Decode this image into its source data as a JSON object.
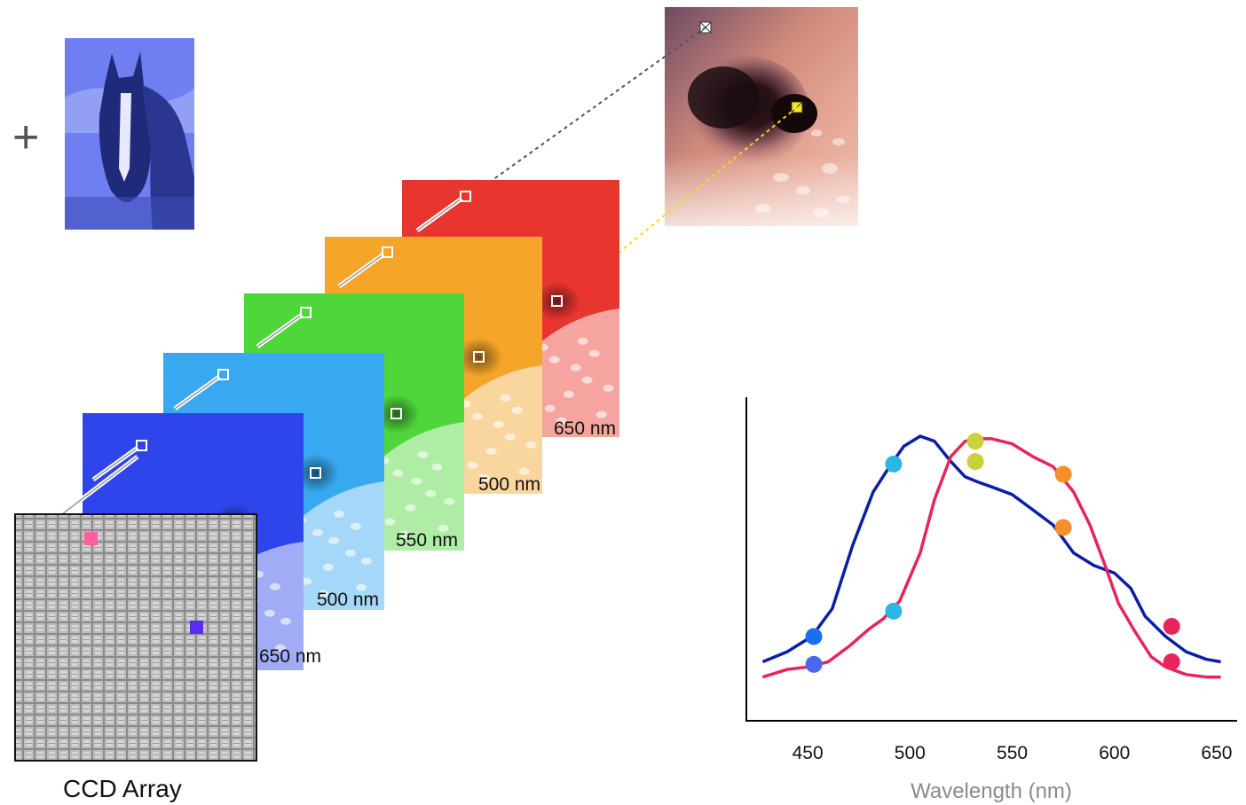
{
  "plus_symbol": "+",
  "ccd": {
    "label": "CCD Array",
    "pixel_colors": [
      "#ff5fa0",
      "#5a2cf0"
    ]
  },
  "back_stack": {
    "layers": [
      {
        "label": "650 nm",
        "color": "#e8352e"
      },
      {
        "label": "500 nm",
        "color": "#f4a52a"
      },
      {
        "label": "550 nm",
        "color": "#4fd63a"
      }
    ]
  },
  "front_stack": {
    "layers": [
      {
        "label": "500 nm",
        "color": "#38a8f0"
      },
      {
        "label": "650 nm",
        "color": "#2f45ec"
      }
    ]
  },
  "thumbnail": {
    "tint": "#6f7ff2",
    "icon": "horse-image"
  },
  "skin_image": {
    "icon": "skin-lesion-image",
    "marker_colors": [
      "#ffffff",
      "#f4ea2a"
    ]
  },
  "chart_data": {
    "type": "line",
    "xlabel": "Wavelength (nm)",
    "ylabel": "",
    "x_ticks": [
      450,
      500,
      550,
      600,
      650
    ],
    "xlim": [
      420,
      660
    ],
    "ylim": [
      0,
      1
    ],
    "grid": false,
    "series": [
      {
        "color": "#0a1fa8",
        "x": [
          428,
          440,
          452,
          462,
          472,
          482,
          490,
          497,
          505,
          512,
          520,
          527,
          533,
          540,
          550,
          560,
          570,
          580,
          590,
          600,
          608,
          615,
          625,
          635,
          645,
          652
        ],
        "y": [
          0.11,
          0.15,
          0.21,
          0.32,
          0.57,
          0.78,
          0.88,
          0.96,
          1.0,
          0.98,
          0.9,
          0.84,
          0.82,
          0.8,
          0.77,
          0.71,
          0.65,
          0.54,
          0.49,
          0.46,
          0.4,
          0.29,
          0.21,
          0.15,
          0.12,
          0.11
        ]
      },
      {
        "color": "#e8245c",
        "x": [
          428,
          440,
          450,
          460,
          470,
          480,
          487,
          495,
          505,
          512,
          520,
          527,
          533,
          540,
          550,
          560,
          570,
          580,
          588,
          595,
          602,
          610,
          618,
          625,
          635,
          645,
          652
        ],
        "y": [
          0.05,
          0.08,
          0.09,
          0.11,
          0.17,
          0.24,
          0.28,
          0.35,
          0.54,
          0.75,
          0.92,
          0.98,
          0.99,
          0.99,
          0.97,
          0.92,
          0.88,
          0.78,
          0.65,
          0.5,
          0.34,
          0.23,
          0.13,
          0.09,
          0.06,
          0.05,
          0.05
        ]
      }
    ],
    "markers": [
      {
        "x": 453,
        "y": 0.21,
        "color": "#1a6ff0"
      },
      {
        "x": 453,
        "y": 0.1,
        "color": "#4a68ee"
      },
      {
        "x": 492,
        "y": 0.89,
        "color": "#2ab6e6"
      },
      {
        "x": 492,
        "y": 0.31,
        "color": "#2ab6e6"
      },
      {
        "x": 532,
        "y": 0.98,
        "color": "#c9d23a"
      },
      {
        "x": 532,
        "y": 0.9,
        "color": "#c9d23a"
      },
      {
        "x": 575,
        "y": 0.85,
        "color": "#f4902a"
      },
      {
        "x": 575,
        "y": 0.64,
        "color": "#f4902a"
      },
      {
        "x": 628,
        "y": 0.25,
        "color": "#e8245c"
      },
      {
        "x": 628,
        "y": 0.11,
        "color": "#e8245c"
      }
    ]
  }
}
